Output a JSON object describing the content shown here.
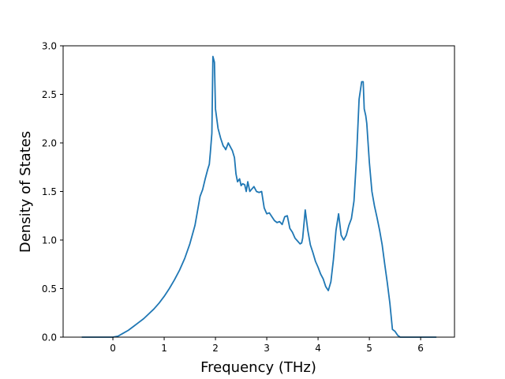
{
  "colors": {
    "line": "#1f77b4",
    "axes": "#000000",
    "background": "#ffffff"
  },
  "chart_data": {
    "type": "line",
    "title": "",
    "xlabel": "Frequency (THz)",
    "ylabel": "Density of States",
    "xlim": [
      -0.97,
      6.66
    ],
    "ylim": [
      0.0,
      3.0
    ],
    "xticks": [
      0,
      1,
      2,
      3,
      4,
      5,
      6
    ],
    "xtick_labels": [
      "0",
      "1",
      "2",
      "3",
      "4",
      "5",
      "6"
    ],
    "yticks": [
      0.0,
      0.5,
      1.0,
      1.5,
      2.0,
      2.5,
      3.0
    ],
    "ytick_labels": [
      "0.0",
      "0.5",
      "1.0",
      "1.5",
      "2.0",
      "2.5",
      "3.0"
    ],
    "grid": false,
    "legend": "none",
    "series": [
      {
        "x": [
          -0.6,
          -0.3,
          0.0,
          0.1,
          0.2,
          0.3,
          0.4,
          0.5,
          0.6,
          0.7,
          0.8,
          0.9,
          1.0,
          1.1,
          1.2,
          1.3,
          1.4,
          1.5,
          1.6,
          1.65,
          1.7,
          1.75,
          1.8,
          1.85,
          1.88,
          1.9,
          1.93,
          1.95,
          1.98,
          2.0,
          2.05,
          2.1,
          2.15,
          2.18,
          2.2,
          2.25,
          2.28,
          2.3,
          2.33,
          2.37,
          2.4,
          2.43,
          2.47,
          2.5,
          2.53,
          2.57,
          2.6,
          2.63,
          2.67,
          2.7,
          2.75,
          2.8,
          2.85,
          2.9,
          2.95,
          3.0,
          3.05,
          3.1,
          3.15,
          3.2,
          3.25,
          3.3,
          3.35,
          3.4,
          3.45,
          3.5,
          3.55,
          3.6,
          3.65,
          3.68,
          3.7,
          3.75,
          3.8,
          3.85,
          3.9,
          3.95,
          4.0,
          4.05,
          4.1,
          4.15,
          4.2,
          4.25,
          4.3,
          4.35,
          4.4,
          4.45,
          4.5,
          4.55,
          4.6,
          4.65,
          4.7,
          4.75,
          4.8,
          4.85,
          4.88,
          4.9,
          4.93,
          4.95,
          5.0,
          5.03,
          5.05,
          5.1,
          5.15,
          5.2,
          5.25,
          5.3,
          5.35,
          5.4,
          5.45,
          5.5,
          5.55,
          5.6,
          5.65,
          5.7,
          5.75,
          6.0,
          6.3
        ],
        "y": [
          0.0,
          0.0,
          0.0,
          0.01,
          0.04,
          0.07,
          0.11,
          0.15,
          0.19,
          0.24,
          0.29,
          0.35,
          0.42,
          0.5,
          0.59,
          0.69,
          0.81,
          0.96,
          1.15,
          1.3,
          1.45,
          1.52,
          1.63,
          1.73,
          1.78,
          1.9,
          2.1,
          2.89,
          2.83,
          2.35,
          2.15,
          2.05,
          1.97,
          1.95,
          1.93,
          2.0,
          1.97,
          1.95,
          1.92,
          1.85,
          1.68,
          1.6,
          1.63,
          1.56,
          1.58,
          1.57,
          1.5,
          1.6,
          1.5,
          1.52,
          1.55,
          1.5,
          1.49,
          1.5,
          1.33,
          1.27,
          1.28,
          1.24,
          1.2,
          1.18,
          1.19,
          1.16,
          1.24,
          1.25,
          1.12,
          1.08,
          1.02,
          0.99,
          0.96,
          0.97,
          1.02,
          1.31,
          1.1,
          0.95,
          0.87,
          0.78,
          0.72,
          0.65,
          0.6,
          0.52,
          0.48,
          0.57,
          0.8,
          1.1,
          1.27,
          1.05,
          1.0,
          1.05,
          1.15,
          1.22,
          1.4,
          1.85,
          2.45,
          2.63,
          2.63,
          2.35,
          2.28,
          2.2,
          1.8,
          1.62,
          1.5,
          1.35,
          1.23,
          1.1,
          0.95,
          0.75,
          0.56,
          0.35,
          0.08,
          0.06,
          0.02,
          0.0,
          0.0,
          0.0,
          0.0,
          0.0,
          0.0
        ]
      }
    ]
  }
}
